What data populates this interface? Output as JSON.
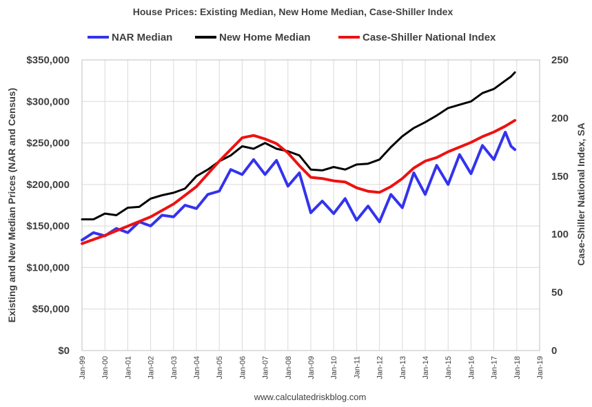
{
  "chart_data": {
    "type": "line",
    "title": "House Prices: Existing Median, New Home Median, Case-Shiller Index",
    "source": "www.calculatedriskblog.com",
    "ylabel_left": "Existing and New Median Prices (NAR and Census)",
    "ylabel_right": "Case-Shiller National Index, SA",
    "ylim_left": [
      0,
      350000
    ],
    "ylim_right": [
      0,
      250
    ],
    "yticks_left": [
      "$0",
      "$50,000",
      "$100,000",
      "$150,000",
      "$200,000",
      "$250,000",
      "$300,000",
      "$350,000"
    ],
    "yticks_right": [
      "0",
      "50",
      "100",
      "150",
      "200",
      "250"
    ],
    "x_categories": [
      "Jan-99",
      "Jan-00",
      "Jan-01",
      "Jan-02",
      "Jan-03",
      "Jan-04",
      "Jan-05",
      "Jan-06",
      "Jan-07",
      "Jan-08",
      "Jan-09",
      "Jan-10",
      "Jan-11",
      "Jan-12",
      "Jan-13",
      "Jan-14",
      "Jan-15",
      "Jan-16",
      "Jan-17",
      "Jan-18",
      "Jan-19"
    ],
    "x_range_years": [
      1999,
      2019
    ],
    "grid": true,
    "legend_position": "top",
    "series": [
      {
        "name": "NAR Median",
        "color": "#3333ee",
        "axis": "left",
        "points": [
          [
            1999.0,
            133000
          ],
          [
            1999.5,
            142000
          ],
          [
            2000.0,
            138000
          ],
          [
            2000.5,
            147000
          ],
          [
            2001.0,
            142000
          ],
          [
            2001.5,
            155000
          ],
          [
            2002.0,
            150000
          ],
          [
            2002.5,
            163000
          ],
          [
            2003.0,
            161000
          ],
          [
            2003.5,
            175000
          ],
          [
            2004.0,
            171000
          ],
          [
            2004.5,
            188000
          ],
          [
            2005.0,
            192000
          ],
          [
            2005.5,
            218000
          ],
          [
            2006.0,
            212000
          ],
          [
            2006.5,
            230000
          ],
          [
            2007.0,
            212000
          ],
          [
            2007.5,
            229000
          ],
          [
            2008.0,
            198000
          ],
          [
            2008.5,
            214000
          ],
          [
            2009.0,
            166000
          ],
          [
            2009.5,
            180000
          ],
          [
            2010.0,
            165000
          ],
          [
            2010.5,
            183000
          ],
          [
            2011.0,
            157000
          ],
          [
            2011.5,
            174000
          ],
          [
            2012.0,
            155000
          ],
          [
            2012.5,
            188000
          ],
          [
            2013.0,
            172000
          ],
          [
            2013.5,
            214000
          ],
          [
            2014.0,
            188000
          ],
          [
            2014.5,
            223000
          ],
          [
            2015.0,
            200000
          ],
          [
            2015.5,
            236000
          ],
          [
            2016.0,
            213000
          ],
          [
            2016.5,
            247000
          ],
          [
            2017.0,
            230000
          ],
          [
            2017.5,
            263000
          ],
          [
            2017.75,
            246000
          ],
          [
            2017.92,
            242000
          ]
        ]
      },
      {
        "name": "New Home Median",
        "color": "#000000",
        "axis": "left",
        "points": [
          [
            1999.0,
            158000
          ],
          [
            1999.5,
            158000
          ],
          [
            2000.0,
            165000
          ],
          [
            2000.5,
            163000
          ],
          [
            2001.0,
            172000
          ],
          [
            2001.5,
            173000
          ],
          [
            2002.0,
            183000
          ],
          [
            2002.5,
            187000
          ],
          [
            2003.0,
            190000
          ],
          [
            2003.5,
            195000
          ],
          [
            2004.0,
            210000
          ],
          [
            2004.5,
            218000
          ],
          [
            2005.0,
            228000
          ],
          [
            2005.5,
            235000
          ],
          [
            2006.0,
            246000
          ],
          [
            2006.5,
            243000
          ],
          [
            2007.0,
            250000
          ],
          [
            2007.5,
            243000
          ],
          [
            2008.0,
            240000
          ],
          [
            2008.5,
            235000
          ],
          [
            2009.0,
            218000
          ],
          [
            2009.5,
            217000
          ],
          [
            2010.0,
            221000
          ],
          [
            2010.5,
            218000
          ],
          [
            2011.0,
            224000
          ],
          [
            2011.5,
            225000
          ],
          [
            2012.0,
            230000
          ],
          [
            2012.5,
            245000
          ],
          [
            2013.0,
            258000
          ],
          [
            2013.5,
            268000
          ],
          [
            2014.0,
            275000
          ],
          [
            2014.5,
            283000
          ],
          [
            2015.0,
            292000
          ],
          [
            2015.5,
            296000
          ],
          [
            2016.0,
            300000
          ],
          [
            2016.5,
            310000
          ],
          [
            2017.0,
            315000
          ],
          [
            2017.5,
            325000
          ],
          [
            2017.75,
            330000
          ],
          [
            2017.92,
            335000
          ]
        ]
      },
      {
        "name": "Case-Shiller National Index",
        "color": "#ee1111",
        "axis": "right",
        "points": [
          [
            1999.0,
            92
          ],
          [
            2000.0,
            99
          ],
          [
            2001.0,
            107
          ],
          [
            2002.0,
            115
          ],
          [
            2003.0,
            126
          ],
          [
            2004.0,
            141
          ],
          [
            2005.0,
            163
          ],
          [
            2005.5,
            173
          ],
          [
            2006.0,
            183
          ],
          [
            2006.5,
            185
          ],
          [
            2007.0,
            182
          ],
          [
            2007.5,
            178
          ],
          [
            2008.0,
            170
          ],
          [
            2008.5,
            159
          ],
          [
            2009.0,
            149
          ],
          [
            2009.5,
            148
          ],
          [
            2010.0,
            146
          ],
          [
            2010.5,
            145
          ],
          [
            2011.0,
            140
          ],
          [
            2011.5,
            137
          ],
          [
            2012.0,
            136
          ],
          [
            2012.5,
            141
          ],
          [
            2013.0,
            148
          ],
          [
            2013.5,
            157
          ],
          [
            2014.0,
            163
          ],
          [
            2014.5,
            166
          ],
          [
            2015.0,
            171
          ],
          [
            2015.5,
            175
          ],
          [
            2016.0,
            179
          ],
          [
            2016.5,
            184
          ],
          [
            2017.0,
            188
          ],
          [
            2017.5,
            193
          ],
          [
            2017.92,
            198
          ]
        ]
      }
    ]
  }
}
